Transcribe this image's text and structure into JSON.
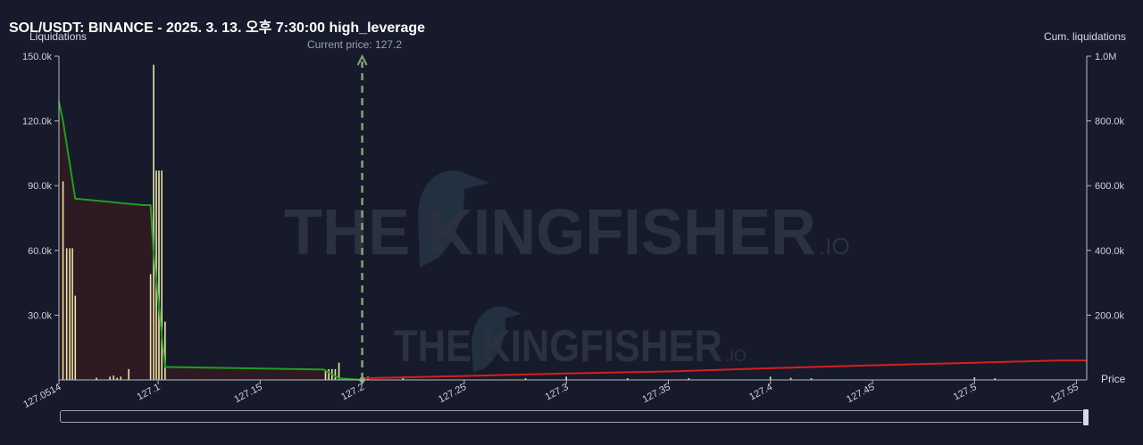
{
  "header": {
    "title": "SOL/USDT: BINANCE - 2025. 3. 13. 오후 7:30:00 high_leverage",
    "current_price_label": "Current price: 127.2"
  },
  "watermark": {
    "brand": "THE KINGFISHER",
    "suffix": ".IO"
  },
  "colors": {
    "background": "#161a2a",
    "long_liq_bar": "#e9e6a6",
    "cum_long_line": "#1f9e1f",
    "cum_long_fill": "#2e1a22",
    "cum_short_line": "#d91e1e",
    "current_price_line": "#7fa775"
  },
  "chart_data": {
    "type": "bar",
    "title": "SOL/USDT: BINANCE - 2025. 3. 13. 오후 7:30:00 high_leverage",
    "xlabel": "Price",
    "ylabel": "Liquidations",
    "y2label": "Cum. liquidations",
    "xlim": [
      127.0514,
      127.555
    ],
    "ylim": [
      0,
      150000
    ],
    "y2lim": [
      0,
      1000000
    ],
    "x_ticks": [
      "127.0514",
      "127.1",
      "127.15",
      "127.2",
      "127.25",
      "127.3",
      "127.35",
      "127.4",
      "127.45",
      "127.5",
      "127.55"
    ],
    "x_tick_values": [
      127.0514,
      127.1,
      127.15,
      127.2,
      127.25,
      127.3,
      127.35,
      127.4,
      127.45,
      127.5,
      127.55
    ],
    "y_ticks": [
      "30.0k",
      "60.0k",
      "90.0k",
      "120.0k",
      "150.0k"
    ],
    "y_tick_values": [
      30000,
      60000,
      90000,
      120000,
      150000
    ],
    "y2_ticks": [
      "200.0k",
      "400.0k",
      "600.0k",
      "800.0k",
      "1.0M"
    ],
    "y2_tick_values": [
      200000,
      400000,
      600000,
      800000,
      1000000
    ],
    "current_price": 127.2,
    "series": [
      {
        "kind": "bar",
        "x": [
          127.0534,
          127.0552,
          127.0567,
          127.058,
          127.0594,
          127.0698,
          127.0764,
          127.0782,
          127.0799,
          127.0817,
          127.0856,
          127.0963,
          127.0978,
          127.0991,
          127.1004,
          127.1018,
          127.1034,
          127.182,
          127.1836,
          127.1852,
          127.1868,
          127.1886,
          127.2028,
          127.22,
          127.28,
          127.3,
          127.33,
          127.36,
          127.4,
          127.41,
          127.42,
          127.5,
          127.51
        ],
        "values": [
          92000,
          61000,
          61000,
          61000,
          39000,
          1000,
          1500,
          2000,
          1000,
          1500,
          5000,
          49000,
          146000,
          97000,
          97000,
          97000,
          27000,
          4000,
          5000,
          5000,
          5000,
          8000,
          1500,
          1200,
          800,
          1500,
          800,
          800,
          1500,
          1000,
          800,
          1200,
          800
        ]
      },
      {
        "kind": "line",
        "axis": "y2",
        "x": [
          127.0514,
          127.0534,
          127.0594,
          127.0925,
          127.0963,
          127.0978,
          127.1034,
          127.1812,
          127.1886,
          127.2,
          127.2
        ],
        "values": [
          860000,
          800000,
          560000,
          540000,
          540000,
          390000,
          40000,
          32000,
          5000,
          0,
          0
        ]
      },
      {
        "kind": "line",
        "axis": "y2",
        "x": [
          127.2,
          127.25,
          127.3,
          127.35,
          127.4,
          127.45,
          127.5,
          127.54,
          127.555
        ],
        "values": [
          5000,
          12000,
          20000,
          26000,
          36000,
          45000,
          53000,
          60000,
          60000
        ]
      }
    ]
  },
  "scrollbar": {
    "start": 0,
    "end": 1
  }
}
